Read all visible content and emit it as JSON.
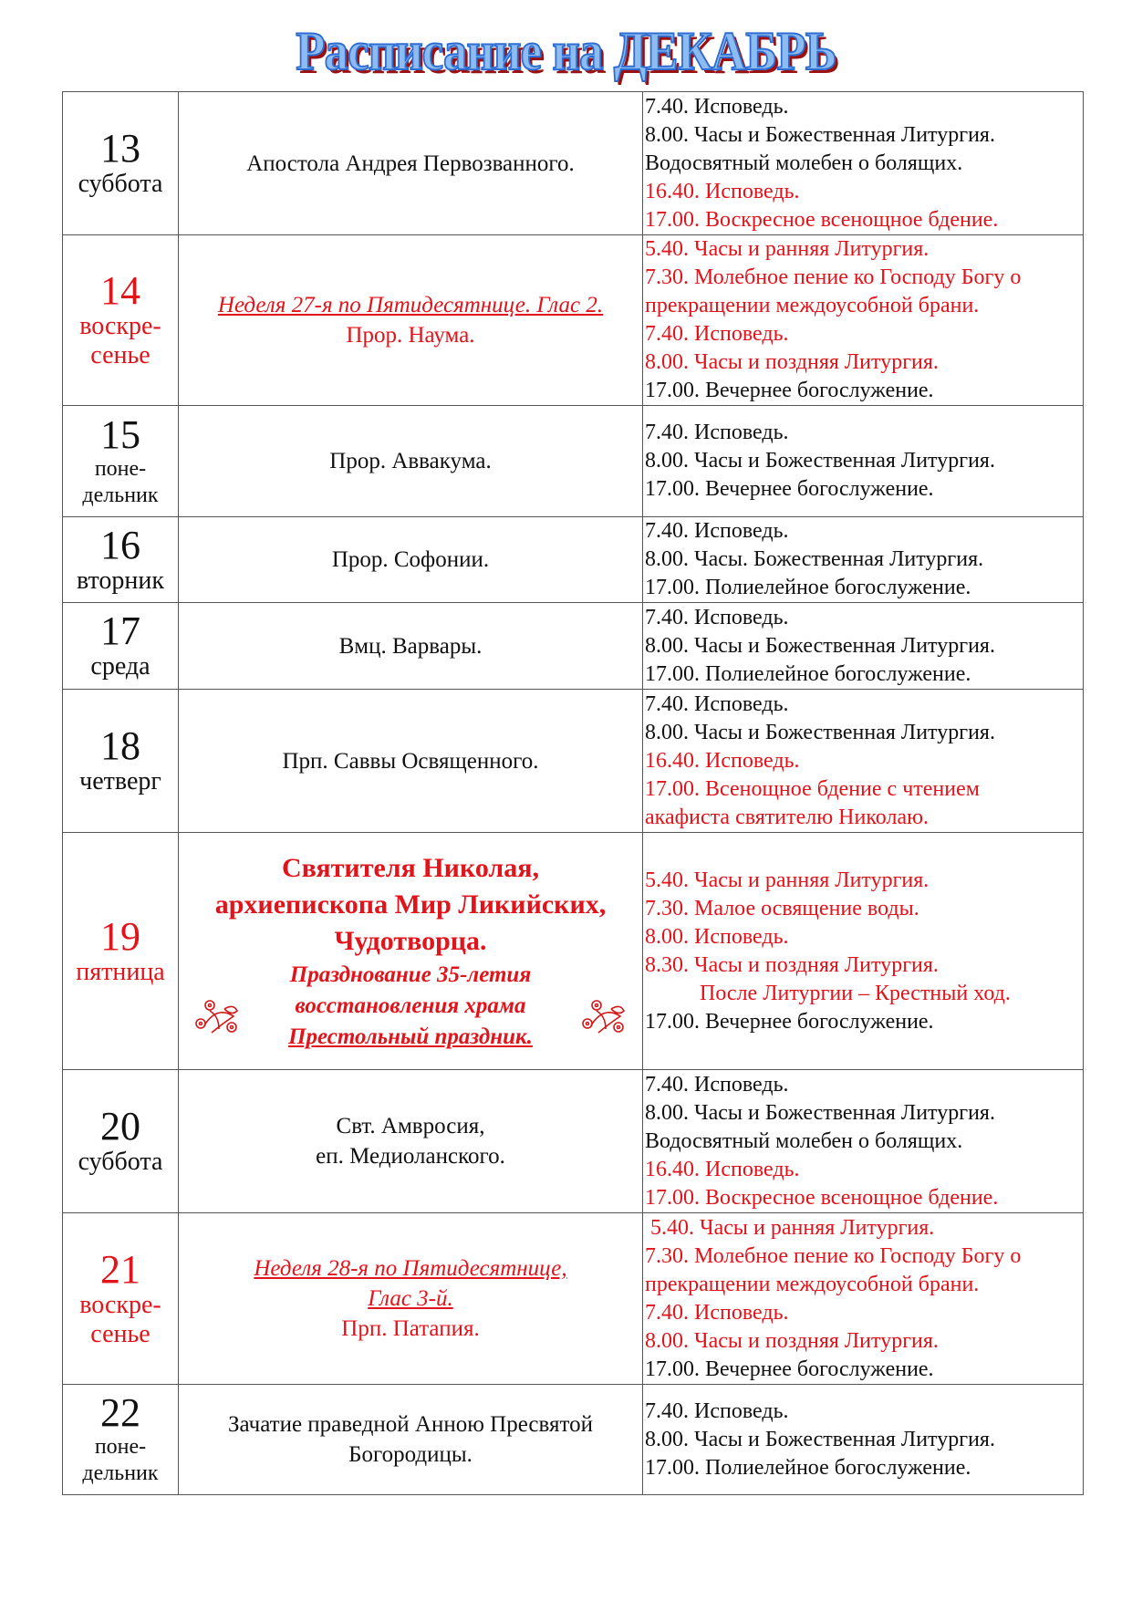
{
  "title": "Расписание на ДЕКАБРЬ",
  "colors": {
    "red": "#e0141a",
    "text": "#111111",
    "title_fill": "#8cbcf2",
    "title_shadow": "#9b1010"
  },
  "rows": [
    {
      "day": "13",
      "weekday": [
        "суббота"
      ],
      "red": false,
      "feast": [
        {
          "text": "Апостола Андрея Первозванного.",
          "style": "normal"
        }
      ],
      "services": [
        {
          "text": "7.40. Исповедь.",
          "red": false
        },
        {
          "text": "8.00. Часы и Божественная Литургия.",
          "red": false
        },
        {
          "text": "Водосвятный молебен о болящих.",
          "red": false
        },
        {
          "text": "16.40. Исповедь.",
          "red": true
        },
        {
          "text": "17.00. Воскресное всенощное бдение.",
          "red": true
        }
      ]
    },
    {
      "day": "14",
      "weekday": [
        "воскре-",
        "сенье"
      ],
      "red": true,
      "feast": [
        {
          "text": "Неделя 27-я по Пятидесятнице. Глас 2.",
          "style": "riu"
        },
        {
          "text": "Прор. Наума.",
          "style": "red"
        }
      ],
      "services": [
        {
          "text": "5.40. Часы и ранняя Литургия.",
          "red": true
        },
        {
          "text": "7.30. Молебное пение ко Господу Богу о",
          "red": true
        },
        {
          "text": "прекращении междоусобной брани.",
          "red": true
        },
        {
          "text": "7.40. Исповедь.",
          "red": true
        },
        {
          "text": "8.00. Часы и поздняя Литургия.",
          "red": true
        },
        {
          "text": "17.00. Вечернее богослужение.",
          "red": false
        }
      ]
    },
    {
      "day": "15",
      "weekday": [
        "поне-",
        "дельник"
      ],
      "red": false,
      "small": true,
      "feast": [
        {
          "text": "Прор. Аввакума.",
          "style": "normal"
        }
      ],
      "services": [
        {
          "text": "7.40. Исповедь.",
          "red": false
        },
        {
          "text": "8.00. Часы и Божественная Литургия.",
          "red": false
        },
        {
          "text": "17.00. Вечернее богослужение.",
          "red": false
        }
      ]
    },
    {
      "day": "16",
      "weekday": [
        "вторник"
      ],
      "red": false,
      "feast": [
        {
          "text": "Прор. Софонии.",
          "style": "normal"
        }
      ],
      "services": [
        {
          "text": "7.40. Исповедь.",
          "red": false
        },
        {
          "text": "8.00. Часы. Божественная Литургия.",
          "red": false
        },
        {
          "text": "17.00. Полиелейное богослужение.",
          "red": false
        }
      ]
    },
    {
      "day": "17",
      "weekday": [
        "среда"
      ],
      "red": false,
      "feast": [
        {
          "text": "Вмц. Варвары.",
          "style": "normal"
        }
      ],
      "services": [
        {
          "text": "7.40. Исповедь.",
          "red": false
        },
        {
          "text": "8.00. Часы и Божественная Литургия.",
          "red": false
        },
        {
          "text": "17.00. Полиелейное богослужение.",
          "red": false
        }
      ]
    },
    {
      "day": "18",
      "weekday": [
        "четверг"
      ],
      "red": false,
      "feast": [
        {
          "text": "Прп. Саввы Освященного.",
          "style": "normal"
        }
      ],
      "services": [
        {
          "text": "7.40. Исповедь.",
          "red": false
        },
        {
          "text": "8.00. Часы и Божественная Литургия.",
          "red": false
        },
        {
          "text": "16.40. Исповедь.",
          "red": true
        },
        {
          "text": "17.00. Всенощное бдение с чтением",
          "red": true
        },
        {
          "text": "акафиста святителю Николаю.",
          "red": true
        }
      ]
    },
    {
      "day": "19",
      "weekday": [
        "пятница"
      ],
      "red": true,
      "ornament": true,
      "feast": [
        {
          "text": "Святителя Николая,",
          "style": "big"
        },
        {
          "text": "архиепископа Мир Ликийских,",
          "style": "big"
        },
        {
          "text": "Чудотворца.",
          "style": "big"
        },
        {
          "text": "Празднование 35-летия",
          "style": "bi"
        },
        {
          "text": "восстановления храма",
          "style": "bi"
        },
        {
          "text": "Престольный праздник.",
          "style": "biu"
        }
      ],
      "services": [
        {
          "text": "5.40. Часы и ранняя Литургия.",
          "red": true
        },
        {
          "text": "7.30. Малое освящение воды.",
          "red": true
        },
        {
          "text": "8.00. Исповедь.",
          "red": true
        },
        {
          "text": "8.30. Часы и поздняя Литургия.",
          "red": true
        },
        {
          "text": "После Литургии – Крестный ход.",
          "red": true,
          "indent": true
        },
        {
          "text": "17.00. Вечернее богослужение.",
          "red": false
        }
      ]
    },
    {
      "day": "20",
      "weekday": [
        "суббота"
      ],
      "red": false,
      "feast": [
        {
          "text": "Свт. Амвросия,",
          "style": "normal"
        },
        {
          "text": "еп. Медиоланского.",
          "style": "normal"
        }
      ],
      "services": [
        {
          "text": "7.40. Исповедь.",
          "red": false
        },
        {
          "text": "8.00. Часы и Божественная Литургия.",
          "red": false
        },
        {
          "text": "Водосвятный молебен о болящих.",
          "red": false
        },
        {
          "text": "16.40. Исповедь.",
          "red": true
        },
        {
          "text": "17.00. Воскресное всенощное бдение.",
          "red": true
        }
      ]
    },
    {
      "day": "21",
      "weekday": [
        "воскре-",
        "сенье"
      ],
      "red": true,
      "feast": [
        {
          "text": "Неделя 28-я по Пятидесятнице,",
          "style": "riu"
        },
        {
          "text": "Глас 3-й.",
          "style": "riu"
        },
        {
          "text": "Прп. Патапия.",
          "style": "red"
        }
      ],
      "services": [
        {
          "text": "5.40. Часы и ранняя Литургия.",
          "red": true,
          "small_indent": true
        },
        {
          "text": "7.30. Молебное пение ко Господу Богу о",
          "red": true
        },
        {
          "text": "прекращении междоусобной брани.",
          "red": true
        },
        {
          "text": "7.40. Исповедь.",
          "red": true
        },
        {
          "text": "8.00. Часы и поздняя Литургия.",
          "red": true
        },
        {
          "text": "17.00. Вечернее богослужение.",
          "red": false
        }
      ]
    },
    {
      "day": "22",
      "weekday": [
        "поне-",
        "дельник"
      ],
      "red": false,
      "small": true,
      "feast": [
        {
          "text": "Зачатие праведной Анною Пресвятой",
          "style": "normal"
        },
        {
          "text": "Богородицы.",
          "style": "normal"
        }
      ],
      "services": [
        {
          "text": "7.40. Исповедь.",
          "red": false
        },
        {
          "text": "8.00. Часы и Божественная Литургия.",
          "red": false
        },
        {
          "text": "17.00. Полиелейное богослужение.",
          "red": false
        }
      ]
    }
  ]
}
